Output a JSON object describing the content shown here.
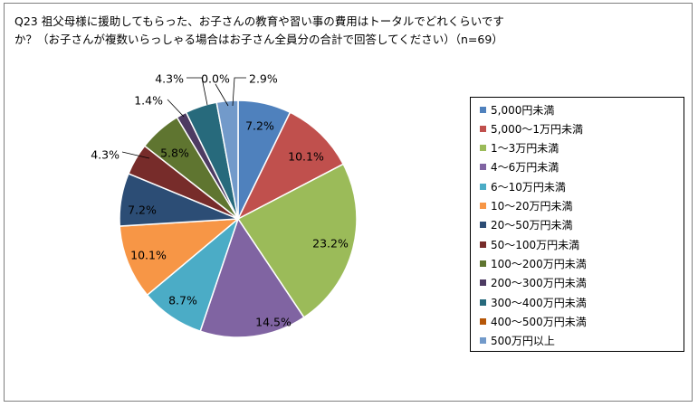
{
  "title": {
    "line1": "Q23 祖父母様に援助してもらった、お子さんの教育や習い事の費用はトータルでどれくらいです",
    "line2": "か？（お子さんが複数いらっしゃる場合はお子さん全員分の合計で回答してください）（n=69）"
  },
  "chart_data": {
    "type": "pie",
    "title": "Q23 祖父母様に援助してもらった、お子さんの教育や習い事の費用はトータルでどれくらいですか？（お子さんが複数いらっしゃる場合はお子さん全員分の合計で回答してください）（n=69）",
    "legend_position": "right",
    "slices": [
      {
        "label": "5,000円未満",
        "value": 7.2,
        "display": "7.2%",
        "color": "#4F81BD"
      },
      {
        "label": "5,000～1万円未満",
        "value": 10.1,
        "display": "10.1%",
        "color": "#C0504D"
      },
      {
        "label": "1～3万円未満",
        "value": 23.2,
        "display": "23.2%",
        "color": "#9BBB59"
      },
      {
        "label": "4～6万円未満",
        "value": 14.5,
        "display": "14.5%",
        "color": "#8064A2"
      },
      {
        "label": "6～10万円未満",
        "value": 8.7,
        "display": "8.7%",
        "color": "#4BACC6"
      },
      {
        "label": "10～20万円未満",
        "value": 10.1,
        "display": "10.1%",
        "color": "#F79646"
      },
      {
        "label": "20～50万円未満",
        "value": 7.2,
        "display": "7.2%",
        "color": "#2C4D75"
      },
      {
        "label": "50～100万円未満",
        "value": 4.3,
        "display": "4.3%",
        "color": "#772C2A"
      },
      {
        "label": "100～200万円未満",
        "value": 5.8,
        "display": "5.8%",
        "color": "#5F7530"
      },
      {
        "label": "200～300万円未満",
        "value": 1.4,
        "display": "1.4%",
        "color": "#4D3B62"
      },
      {
        "label": "300～400万円未満",
        "value": 4.3,
        "display": "4.3%",
        "color": "#276A7C"
      },
      {
        "label": "400～500万円未満",
        "value": 0.0,
        "display": "0.0%",
        "color": "#B65708"
      },
      {
        "label": "500万円以上",
        "value": 2.9,
        "display": "2.9%",
        "color": "#729ACA"
      }
    ]
  }
}
